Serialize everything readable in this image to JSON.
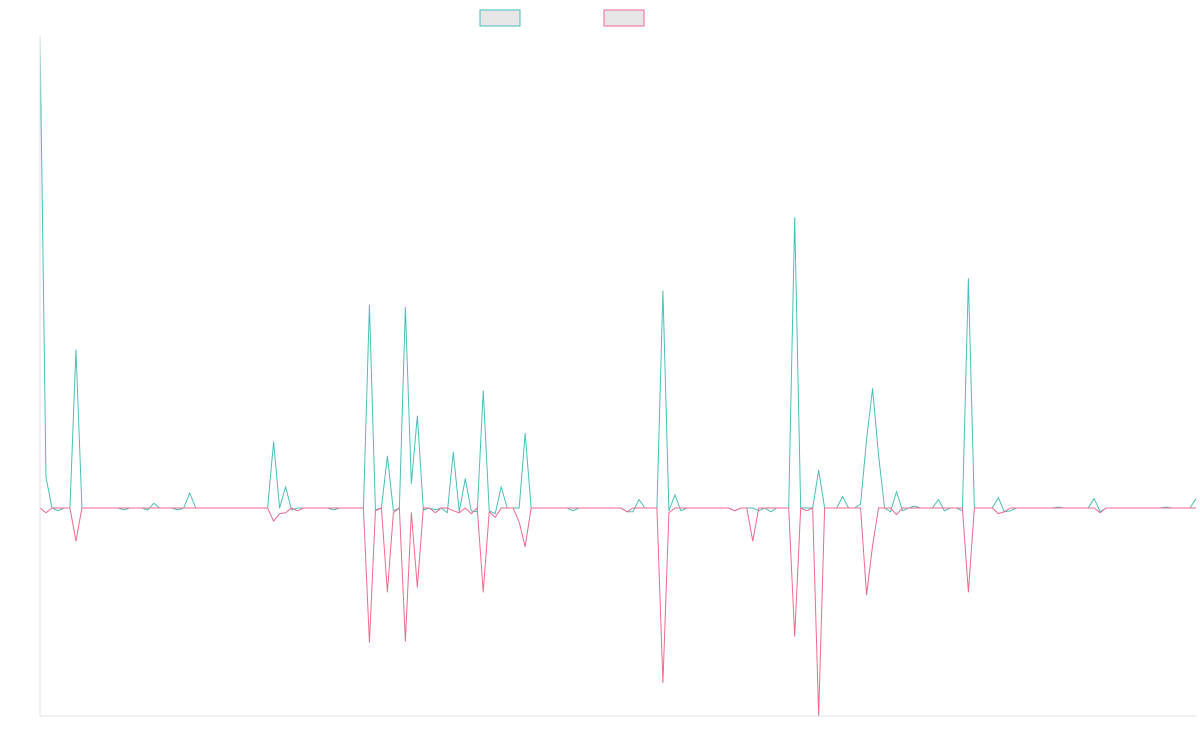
{
  "chart_data": {
    "type": "line",
    "title": "",
    "xlabel": "",
    "ylabel": "",
    "legend_position": "top-center",
    "grid": false,
    "x_range": [
      0,
      193
    ],
    "ylim": [
      -500,
      1000
    ],
    "baseline": 0,
    "series": [
      {
        "color": "#4bbfb9",
        "legend_fill": "#e6e6e6",
        "values": [
          1000,
          0,
          65,
          0,
          0,
          0,
          335,
          0,
          0,
          0,
          0,
          0,
          0,
          0,
          0,
          0,
          0,
          0,
          0,
          8,
          0,
          0,
          0,
          0,
          0,
          0,
          0,
          0,
          0,
          0,
          0,
          0,
          0,
          0,
          0,
          0,
          0,
          0,
          0,
          0,
          36,
          0,
          0,
          0,
          0,
          0,
          0,
          0,
          0,
          0,
          0,
          0,
          0,
          0,
          0,
          0,
          0,
          0,
          0,
          0,
          0,
          0,
          0,
          0,
          0,
          0,
          0,
          0,
          0,
          0,
          0,
          0,
          0,
          0,
          0,
          0,
          0,
          0,
          0,
          0,
          0,
          0,
          0,
          0,
          0,
          0,
          0,
          0,
          0,
          0,
          0,
          0,
          0,
          0,
          0,
          0,
          0,
          0,
          0,
          0,
          0,
          0,
          0,
          0,
          0,
          0,
          0,
          0,
          0,
          0,
          0,
          0,
          0,
          0,
          0,
          0,
          0,
          0,
          0,
          0,
          0,
          0,
          0,
          0,
          0,
          0,
          0,
          0,
          0,
          0,
          0,
          0,
          0,
          0,
          0,
          0,
          0,
          0,
          0,
          0,
          0,
          0,
          0,
          0,
          0,
          0,
          0,
          0,
          0,
          0,
          0,
          0,
          0,
          0,
          0,
          0,
          0,
          0,
          0,
          0,
          0,
          0,
          0,
          0,
          0,
          0,
          0,
          0,
          0,
          0,
          0,
          0,
          0,
          0,
          0,
          0,
          0,
          0,
          0,
          0,
          0,
          0,
          0,
          0,
          0,
          0,
          0,
          0,
          0,
          0,
          0,
          0,
          0,
          0,
          0
        ]
      },
      {
        "color": "#f06a8d",
        "legend_fill": "#e6e6e6",
        "values": [
          0,
          -5,
          0,
          0,
          0,
          0,
          -70,
          0,
          0,
          0,
          0,
          0,
          0,
          0,
          0,
          0,
          0,
          0,
          0,
          0,
          0,
          0,
          0,
          0,
          0,
          0,
          0,
          0,
          0,
          0,
          0,
          0,
          0,
          0,
          0,
          0,
          0,
          0,
          0,
          0,
          0,
          0,
          0,
          0,
          0,
          0,
          0,
          0,
          0,
          0,
          0,
          0,
          0,
          0,
          0,
          0,
          0,
          0,
          0,
          0,
          0,
          0,
          0,
          0,
          0,
          0,
          0,
          0,
          0,
          0,
          0,
          0,
          0,
          0,
          0,
          0,
          0,
          0,
          0,
          0,
          0,
          0,
          0,
          0,
          0,
          0,
          0,
          0,
          0,
          0,
          0,
          0,
          0,
          0,
          0,
          0,
          0,
          0,
          0,
          0,
          0,
          0,
          0,
          0,
          0,
          0,
          0,
          0,
          0,
          0,
          0,
          0,
          0,
          0,
          0,
          0,
          0,
          0,
          0,
          0,
          0,
          0,
          0,
          0,
          0,
          0,
          0,
          0,
          0,
          0,
          0,
          0,
          0,
          0,
          0,
          0,
          0,
          0,
          0,
          0,
          0,
          0,
          0,
          0,
          0,
          0,
          0,
          0,
          0,
          0,
          0,
          0,
          0,
          0,
          0,
          0,
          0,
          0,
          0,
          0,
          0,
          0,
          0,
          0,
          0,
          0,
          0,
          0,
          0,
          0,
          0,
          0,
          0,
          0,
          0,
          0,
          0,
          0,
          0,
          0,
          0,
          0,
          0,
          0,
          0,
          0,
          0,
          0,
          0,
          0,
          0,
          0,
          0,
          0,
          0,
          0
        ]
      }
    ]
  }
}
